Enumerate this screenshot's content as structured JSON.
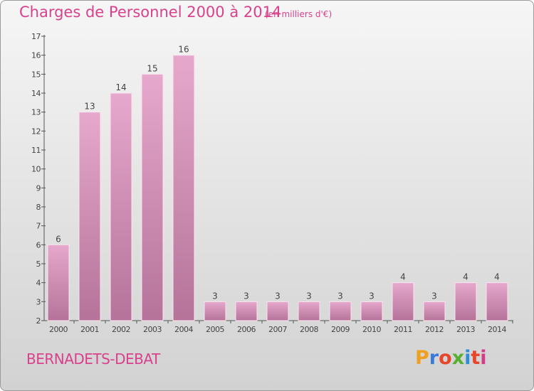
{
  "page": {
    "title": "Charges de Personnel 2000 à 2014",
    "subtitle": "(en milliers d'€)",
    "commune": "BERNADETS-DEBAT",
    "logo": "Proxiti"
  },
  "chart_data": {
    "type": "bar",
    "title": "Charges de Personnel 2000 à 2014",
    "subtitle": "(en milliers d'€)",
    "xlabel": "",
    "ylabel": "",
    "categories": [
      "2000",
      "2001",
      "2002",
      "2003",
      "2004",
      "2005",
      "2006",
      "2007",
      "2008",
      "2009",
      "2010",
      "2011",
      "2012",
      "2013",
      "2014"
    ],
    "values": [
      6,
      13,
      14,
      15,
      16,
      3,
      3,
      3,
      3,
      3,
      3,
      4,
      3,
      4,
      4
    ],
    "ylim": [
      2,
      17
    ],
    "yticks": [
      2,
      3,
      4,
      5,
      6,
      7,
      8,
      9,
      10,
      11,
      12,
      13,
      14,
      15,
      16,
      17
    ],
    "grid": false,
    "legend": "none",
    "colors": {
      "bar": "#c47ea6",
      "bar_light": "#e6a8cc",
      "text_accent": "#d9418c",
      "axis": "#555555"
    }
  }
}
